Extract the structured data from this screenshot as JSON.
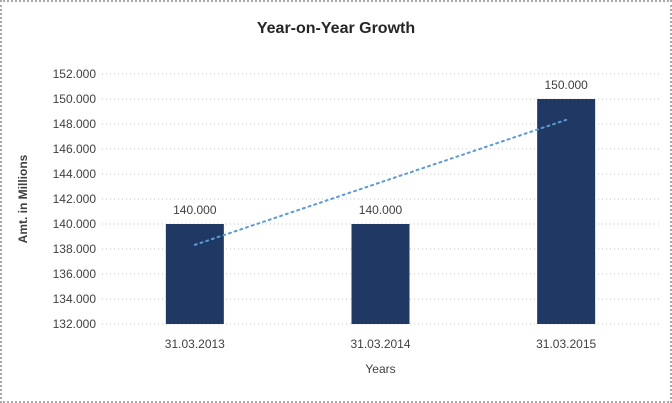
{
  "chart_data": {
    "type": "bar",
    "title": "Year-on-Year Growth",
    "xlabel": "Years",
    "ylabel": "Amt. in Millions",
    "categories": [
      "31.03.2013",
      "31.03.2014",
      "31.03.2015"
    ],
    "values": [
      140,
      140,
      150
    ],
    "value_labels": [
      "140.000",
      "140.000",
      "150.000"
    ],
    "ylim": [
      132,
      152
    ],
    "y_tick_step": 2,
    "y_tick_labels": [
      "132.000",
      "134.000",
      "136.000",
      "138.000",
      "140.000",
      "142.000",
      "144.000",
      "146.000",
      "148.000",
      "150.000",
      "152.000"
    ],
    "grid": "horizontal-dotted",
    "legend": "none",
    "bar_color": "#1f3864",
    "gridline_color": "#c3c3c3",
    "label_color": "#404040",
    "title_color": "#262626",
    "trendline": {
      "type": "linear",
      "style": "dotted",
      "color": "#5b9bd5",
      "start_value": 138.33,
      "end_value": 148.33
    }
  }
}
